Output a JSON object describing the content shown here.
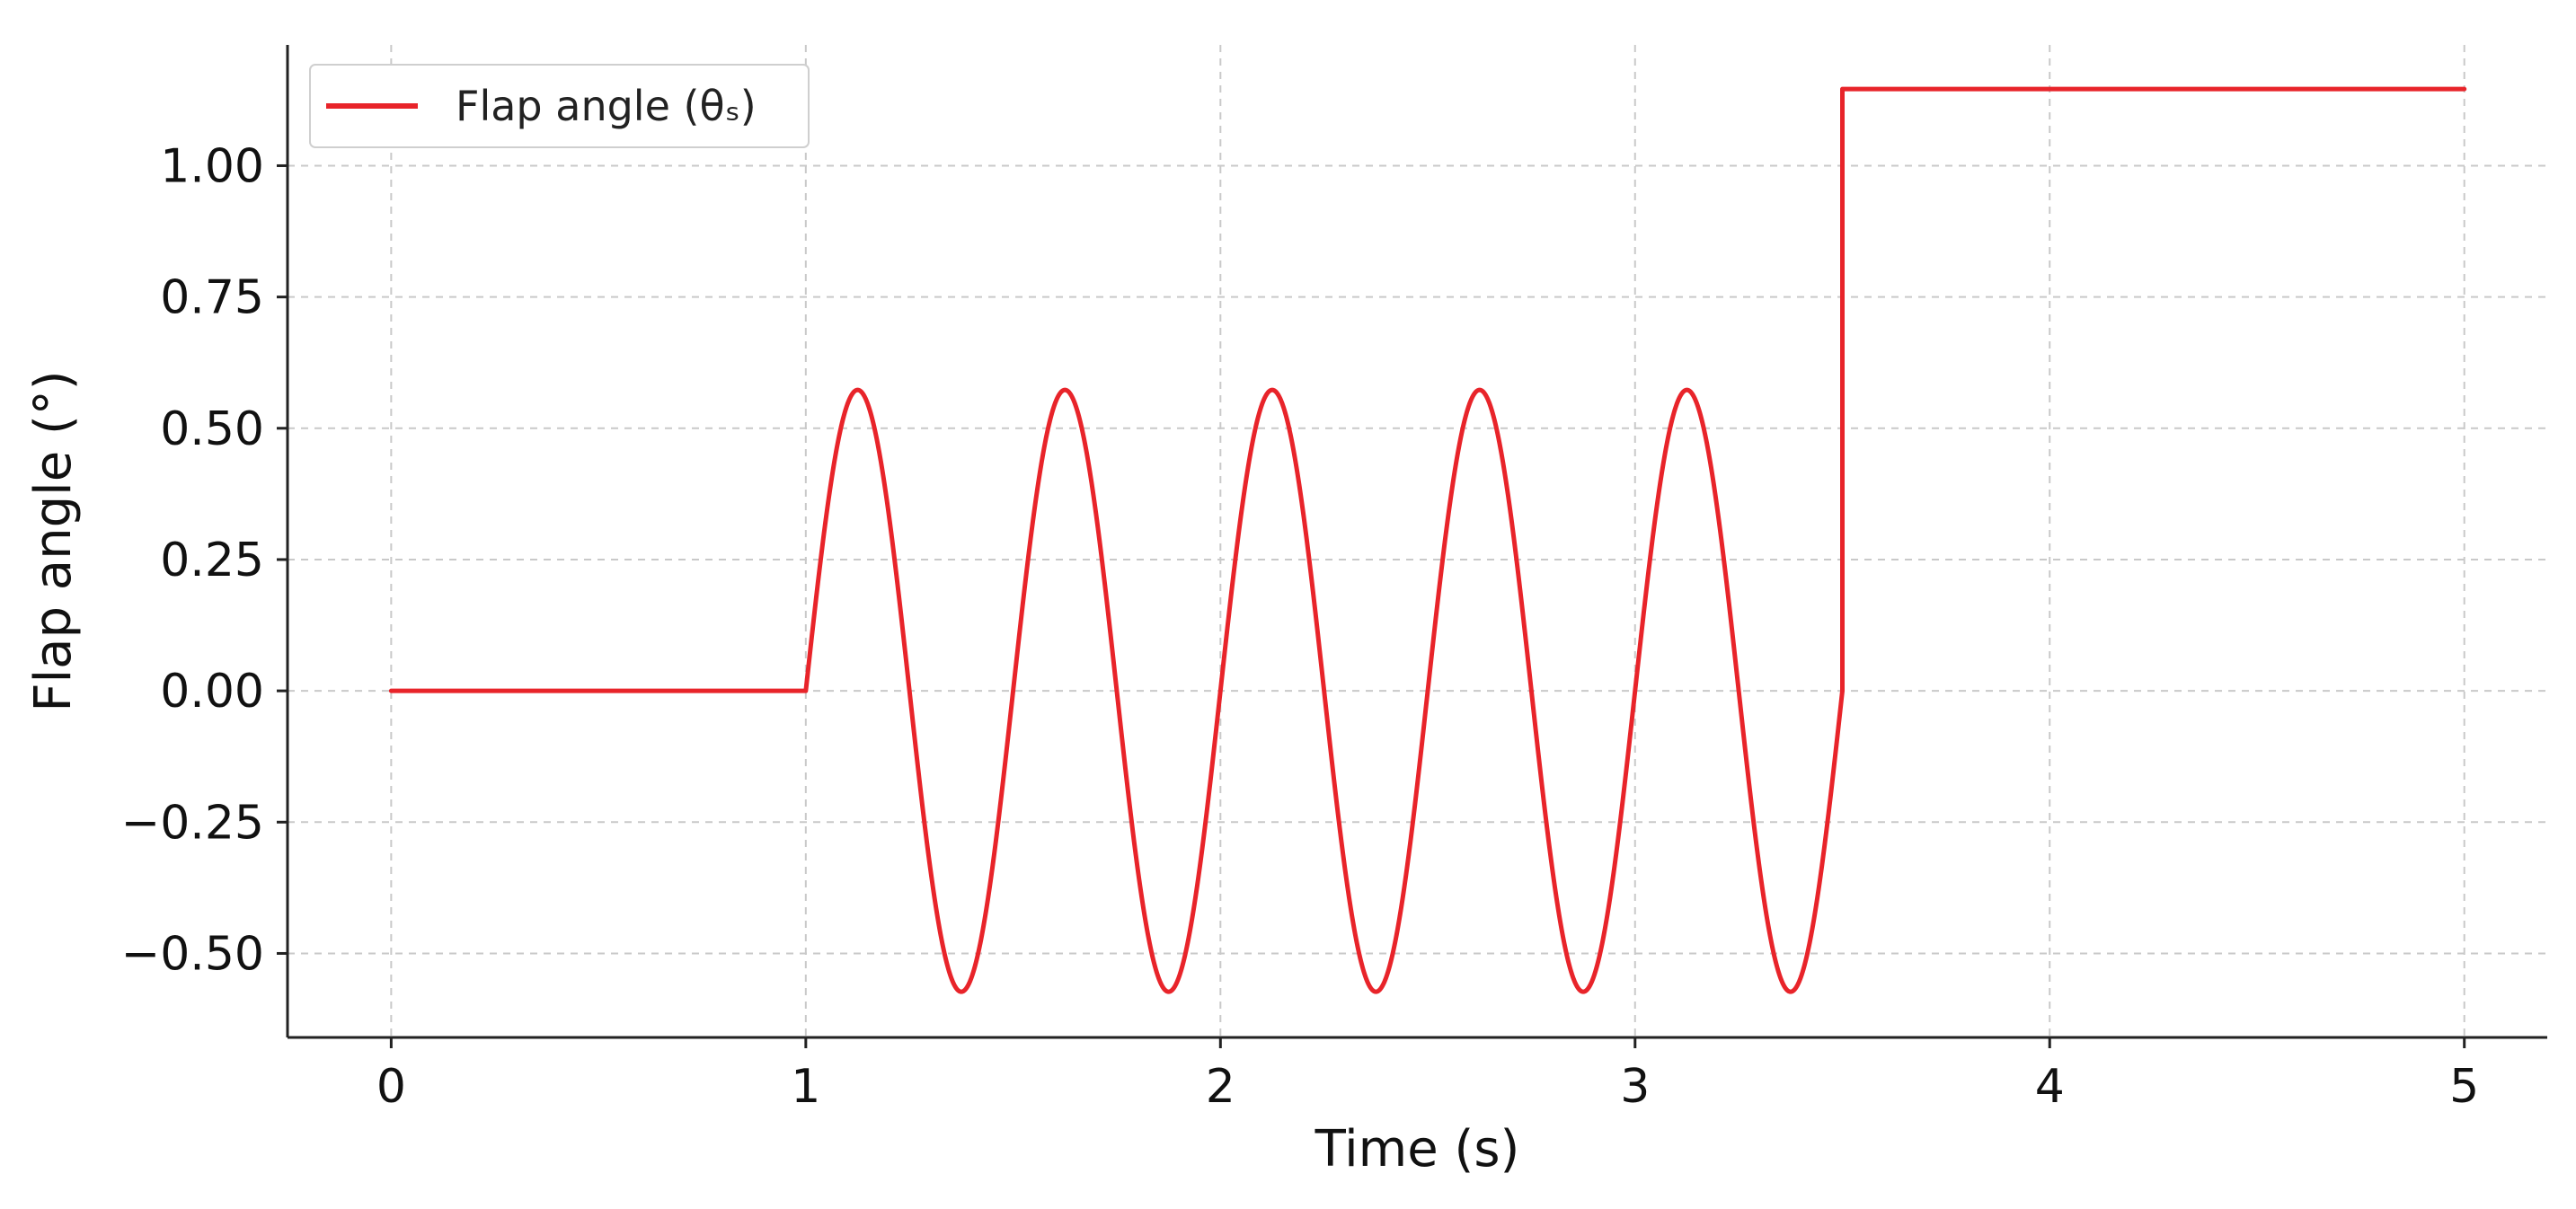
{
  "chart_data": {
    "type": "line",
    "title": "",
    "xlabel": "Time (s)",
    "ylabel": "Flap angle (°)",
    "xlim": [
      -0.25,
      5.2
    ],
    "ylim": [
      -0.66,
      1.23
    ],
    "grid": true,
    "legend_position": "top-left",
    "x_ticks": [
      0,
      1,
      2,
      3,
      4,
      5
    ],
    "x_tick_labels": [
      "0",
      "1",
      "2",
      "3",
      "4",
      "5"
    ],
    "y_ticks": [
      1.0,
      0.75,
      0.5,
      0.25,
      0.0,
      -0.25,
      -0.5
    ],
    "y_tick_labels": [
      "1.00",
      "0.75",
      "0.50",
      "0.25",
      "0.00",
      "−0.25",
      "−0.50"
    ],
    "series": [
      {
        "name": "Flap angle (θₛ)",
        "color": "#e8242a",
        "segments": [
          {
            "shape": "constant",
            "x_start": 0.0,
            "x_end": 1.0,
            "value": 0.0
          },
          {
            "shape": "sine",
            "x_start": 1.0,
            "x_end": 3.5,
            "amplitude": 0.573,
            "frequency_hz": 2.0,
            "phase_start": 1.0
          },
          {
            "shape": "step",
            "x": 3.5,
            "from": 0.0,
            "to": 1.146
          },
          {
            "shape": "constant",
            "x_start": 3.5,
            "x_end": 5.0,
            "value": 1.146
          }
        ]
      }
    ]
  }
}
